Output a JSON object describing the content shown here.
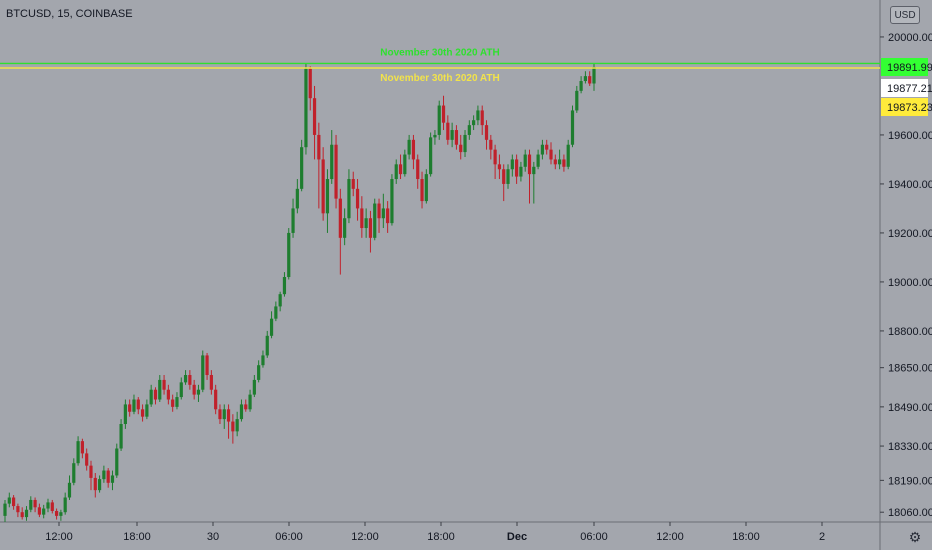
{
  "header": {
    "symbol_label": "BTCUSD, 15, COINBASE"
  },
  "price_axis": {
    "currency_label": "USD"
  },
  "colors": {
    "background": "#a3a6ad",
    "up": "#1e7d2f",
    "down": "#c0212b",
    "green_line": "#2ee02e",
    "yellow_line": "#f2e34a"
  },
  "icons": {
    "settings": "gear-icon"
  },
  "chart_data": {
    "type": "candlestick",
    "title": "BTCUSD, 15, COINBASE",
    "ylim": [
      18020,
      20110
    ],
    "y_ticks": [
      18060,
      18190,
      18330,
      18490,
      18650,
      18800,
      19000,
      19200,
      19400,
      19600,
      20000
    ],
    "y_tick_labels": [
      "18060.00",
      "18190.00",
      "18330.00",
      "18490.00",
      "18650.00",
      "18800.00",
      "19000.00",
      "19200.00",
      "19400.00",
      "19600.00",
      "20000.00"
    ],
    "x_tick_labels": [
      "12:00",
      "18:00",
      "30",
      "06:00",
      "12:00",
      "18:00",
      "Dec",
      "06:00",
      "12:00",
      "18:00",
      "2"
    ],
    "price_labels": [
      {
        "value": "19891.99",
        "style": "green"
      },
      {
        "value": "19877.21",
        "style": "white"
      },
      {
        "value": "19873.23",
        "style": "yellow"
      }
    ],
    "horizontal_lines": [
      {
        "name": "green",
        "price": 19891.99,
        "label": "November 30th 2020 ATH",
        "label_color": "#2ee02e"
      },
      {
        "name": "yellow",
        "price": 19873.23,
        "label": "November 30th 2020 ATH",
        "label_color": "#f2e34a"
      }
    ],
    "grid": false,
    "candles": [
      [
        18045,
        18095,
        18020,
        18110
      ],
      [
        18095,
        18120,
        18080,
        18140
      ],
      [
        18120,
        18085,
        18070,
        18130
      ],
      [
        18085,
        18060,
        18040,
        18095
      ],
      [
        18060,
        18040,
        18030,
        18080
      ],
      [
        18040,
        18070,
        18025,
        18085
      ],
      [
        18070,
        18110,
        18060,
        18125
      ],
      [
        18110,
        18080,
        18060,
        18120
      ],
      [
        18080,
        18050,
        18040,
        18095
      ],
      [
        18050,
        18075,
        18035,
        18090
      ],
      [
        18075,
        18100,
        18060,
        18115
      ],
      [
        18100,
        18065,
        18055,
        18110
      ],
      [
        18065,
        18045,
        18030,
        18075
      ],
      [
        18045,
        18060,
        18025,
        18070
      ],
      [
        18060,
        18120,
        18050,
        18140
      ],
      [
        18120,
        18180,
        18110,
        18210
      ],
      [
        18180,
        18260,
        18170,
        18280
      ],
      [
        18260,
        18350,
        18250,
        18370
      ],
      [
        18350,
        18300,
        18280,
        18360
      ],
      [
        18300,
        18250,
        18230,
        18320
      ],
      [
        18250,
        18200,
        18150,
        18270
      ],
      [
        18200,
        18150,
        18120,
        18220
      ],
      [
        18150,
        18195,
        18140,
        18210
      ],
      [
        18195,
        18230,
        18180,
        18250
      ],
      [
        18230,
        18180,
        18160,
        18240
      ],
      [
        18180,
        18210,
        18150,
        18230
      ],
      [
        18210,
        18320,
        18200,
        18340
      ],
      [
        18320,
        18420,
        18310,
        18440
      ],
      [
        18420,
        18500,
        18400,
        18520
      ],
      [
        18500,
        18470,
        18450,
        18520
      ],
      [
        18470,
        18520,
        18460,
        18540
      ],
      [
        18520,
        18480,
        18460,
        18530
      ],
      [
        18480,
        18450,
        18430,
        18500
      ],
      [
        18450,
        18500,
        18440,
        18520
      ],
      [
        18500,
        18560,
        18490,
        18580
      ],
      [
        18560,
        18520,
        18500,
        18570
      ],
      [
        18520,
        18600,
        18510,
        18620
      ],
      [
        18600,
        18560,
        18540,
        18620
      ],
      [
        18560,
        18520,
        18500,
        18580
      ],
      [
        18520,
        18490,
        18470,
        18540
      ],
      [
        18490,
        18530,
        18480,
        18550
      ],
      [
        18530,
        18590,
        18520,
        18610
      ],
      [
        18590,
        18620,
        18580,
        18640
      ],
      [
        18620,
        18580,
        18560,
        18640
      ],
      [
        18580,
        18540,
        18520,
        18600
      ],
      [
        18540,
        18560,
        18510,
        18580
      ],
      [
        18560,
        18700,
        18550,
        18720
      ],
      [
        18700,
        18620,
        18600,
        18710
      ],
      [
        18620,
        18560,
        18540,
        18640
      ],
      [
        18560,
        18480,
        18460,
        18580
      ],
      [
        18480,
        18440,
        18420,
        18500
      ],
      [
        18440,
        18480,
        18400,
        18500
      ],
      [
        18480,
        18430,
        18360,
        18500
      ],
      [
        18430,
        18390,
        18340,
        18460
      ],
      [
        18390,
        18440,
        18370,
        18470
      ],
      [
        18440,
        18500,
        18430,
        18520
      ],
      [
        18500,
        18480,
        18470,
        18520
      ],
      [
        18480,
        18540,
        18470,
        18560
      ],
      [
        18540,
        18600,
        18530,
        18620
      ],
      [
        18600,
        18660,
        18590,
        18680
      ],
      [
        18660,
        18700,
        18650,
        18720
      ],
      [
        18700,
        18780,
        18690,
        18800
      ],
      [
        18780,
        18850,
        18770,
        18880
      ],
      [
        18850,
        18900,
        18840,
        18920
      ],
      [
        18900,
        18950,
        18880,
        18960
      ],
      [
        18950,
        19020,
        18940,
        19040
      ],
      [
        19020,
        19200,
        19010,
        19220
      ],
      [
        19200,
        19300,
        19180,
        19340
      ],
      [
        19300,
        19380,
        19280,
        19420
      ],
      [
        19380,
        19550,
        19370,
        19580
      ],
      [
        19550,
        19870,
        19520,
        19890
      ],
      [
        19870,
        19750,
        19700,
        19880
      ],
      [
        19750,
        19600,
        19500,
        19800
      ],
      [
        19600,
        19500,
        19300,
        19650
      ],
      [
        19500,
        19280,
        19250,
        19550
      ],
      [
        19280,
        19420,
        19200,
        19460
      ],
      [
        19420,
        19560,
        19400,
        19620
      ],
      [
        19560,
        19340,
        19300,
        19600
      ],
      [
        19340,
        19180,
        19030,
        19380
      ],
      [
        19180,
        19260,
        19150,
        19300
      ],
      [
        19260,
        19420,
        19240,
        19460
      ],
      [
        19420,
        19380,
        19350,
        19450
      ],
      [
        19380,
        19300,
        19250,
        19420
      ],
      [
        19300,
        19220,
        19180,
        19350
      ],
      [
        19220,
        19260,
        19180,
        19300
      ],
      [
        19260,
        19180,
        19120,
        19290
      ],
      [
        19180,
        19320,
        19170,
        19340
      ],
      [
        19320,
        19260,
        19200,
        19340
      ],
      [
        19260,
        19300,
        19220,
        19360
      ],
      [
        19300,
        19240,
        19200,
        19330
      ],
      [
        19240,
        19420,
        19230,
        19440
      ],
      [
        19420,
        19480,
        19400,
        19500
      ],
      [
        19480,
        19440,
        19420,
        19520
      ],
      [
        19440,
        19520,
        19430,
        19540
      ],
      [
        19520,
        19580,
        19500,
        19600
      ],
      [
        19580,
        19500,
        19460,
        19600
      ],
      [
        19500,
        19420,
        19380,
        19520
      ],
      [
        19420,
        19330,
        19300,
        19450
      ],
      [
        19330,
        19440,
        19320,
        19460
      ],
      [
        19440,
        19590,
        19430,
        19610
      ],
      [
        19590,
        19600,
        19560,
        19620
      ],
      [
        19600,
        19720,
        19580,
        19740
      ],
      [
        19720,
        19650,
        19620,
        19760
      ],
      [
        19650,
        19580,
        19560,
        19680
      ],
      [
        19580,
        19620,
        19550,
        19650
      ],
      [
        19620,
        19560,
        19540,
        19640
      ],
      [
        19560,
        19530,
        19500,
        19600
      ],
      [
        19530,
        19600,
        19510,
        19620
      ],
      [
        19600,
        19640,
        19580,
        19660
      ],
      [
        19640,
        19660,
        19620,
        19680
      ],
      [
        19660,
        19700,
        19640,
        19720
      ],
      [
        19700,
        19640,
        19600,
        19720
      ],
      [
        19640,
        19580,
        19540,
        19660
      ],
      [
        19580,
        19540,
        19500,
        19600
      ],
      [
        19540,
        19480,
        19420,
        19560
      ],
      [
        19480,
        19460,
        19420,
        19520
      ],
      [
        19460,
        19400,
        19330,
        19480
      ],
      [
        19400,
        19460,
        19380,
        19480
      ],
      [
        19460,
        19500,
        19430,
        19520
      ],
      [
        19500,
        19430,
        19400,
        19520
      ],
      [
        19430,
        19470,
        19410,
        19490
      ],
      [
        19470,
        19520,
        19450,
        19540
      ],
      [
        19520,
        19440,
        19320,
        19540
      ],
      [
        19440,
        19470,
        19320,
        19490
      ],
      [
        19470,
        19520,
        19460,
        19540
      ],
      [
        19520,
        19560,
        19500,
        19580
      ],
      [
        19560,
        19540,
        19520,
        19580
      ],
      [
        19540,
        19500,
        19480,
        19570
      ],
      [
        19500,
        19480,
        19460,
        19520
      ],
      [
        19480,
        19500,
        19460,
        19540
      ],
      [
        19500,
        19470,
        19450,
        19520
      ],
      [
        19470,
        19560,
        19460,
        19580
      ],
      [
        19560,
        19700,
        19550,
        19720
      ],
      [
        19700,
        19780,
        19690,
        19800
      ],
      [
        19780,
        19820,
        19770,
        19840
      ],
      [
        19820,
        19840,
        19810,
        19860
      ],
      [
        19840,
        19810,
        19800,
        19860
      ],
      [
        19810,
        19877,
        19780,
        19892
      ]
    ]
  }
}
